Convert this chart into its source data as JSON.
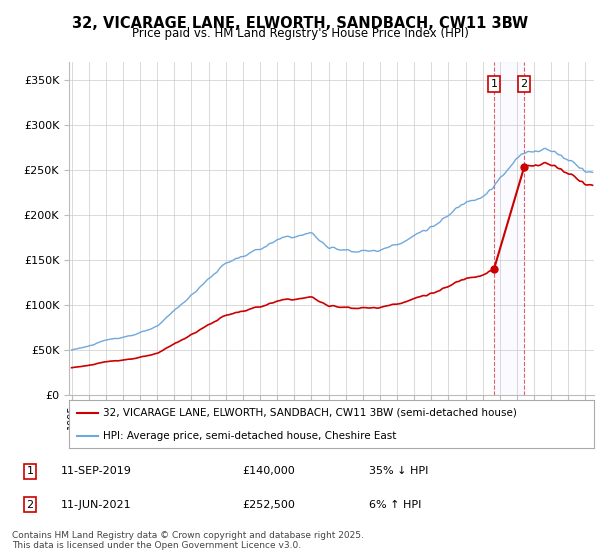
{
  "title": "32, VICARAGE LANE, ELWORTH, SANDBACH, CW11 3BW",
  "subtitle": "Price paid vs. HM Land Registry's House Price Index (HPI)",
  "hpi_color": "#6fa8dc",
  "price_color": "#cc0000",
  "sale1_year": 2019,
  "sale1_month": 9,
  "sale1_price": 140000,
  "sale2_year": 2021,
  "sale2_month": 6,
  "sale2_price": 252500,
  "legend_line1": "32, VICARAGE LANE, ELWORTH, SANDBACH, CW11 3BW (semi-detached house)",
  "legend_line2": "HPI: Average price, semi-detached house, Cheshire East",
  "footer": "Contains HM Land Registry data © Crown copyright and database right 2025.\nThis data is licensed under the Open Government Licence v3.0.",
  "background_color": "#ffffff",
  "grid_color": "#cccccc",
  "ylim": [
    0,
    370000
  ],
  "yticks": [
    0,
    50000,
    100000,
    150000,
    200000,
    250000,
    300000,
    350000
  ],
  "ylabels": [
    "£0",
    "£50K",
    "£100K",
    "£150K",
    "£200K",
    "£250K",
    "£300K",
    "£350K"
  ],
  "xstart": 1995,
  "xend": 2025
}
